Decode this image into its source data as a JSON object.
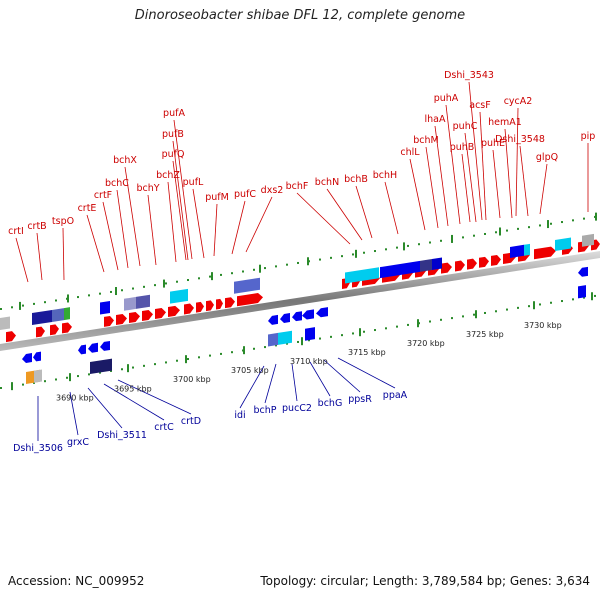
{
  "title": "Dinoroseobacter shibae DFL 12, complete genome",
  "footer": {
    "accession": "Accession: NC_009952",
    "summary": "Topology: circular; Length: 3,789,584 bp; Genes: 3,634"
  },
  "colors": {
    "forward_gene": "#ee0000",
    "reverse_gene": "#0000ee",
    "forward_label": "#cc0000",
    "reverse_label": "#000099",
    "tick": "#2a8a2a",
    "backbone": "#888888"
  },
  "ruler_labels": [
    "3690 kbp",
    "3695 kbp",
    "3700 kbp",
    "3705 kbp",
    "3710 kbp",
    "3715 kbp",
    "3720 kbp",
    "3725 kbp",
    "3730 kbp"
  ],
  "forward_labels": [
    "crtI",
    "crtB",
    "tspO",
    "crtE",
    "crtF",
    "bchC",
    "bchX",
    "bchY",
    "bchZ",
    "pufA",
    "pufB",
    "pufQ",
    "pufL",
    "pufM",
    "pufC",
    "dxs2",
    "bchF",
    "bchN",
    "bchB",
    "bchH",
    "chlL",
    "bchM",
    "lhaA",
    "puhA",
    "puhB",
    "puhC",
    "acsF",
    "puhE",
    "Dshi_3543",
    "cycA2",
    "hemA1",
    "Dshi_3548",
    "glpQ",
    "pip"
  ],
  "reverse_labels": [
    "Dshi_3506",
    "grxC",
    "Dshi_3511",
    "crtC",
    "crtD",
    "idi",
    "bchP",
    "pucC2",
    "bchG",
    "ppsR",
    "ppaA"
  ]
}
